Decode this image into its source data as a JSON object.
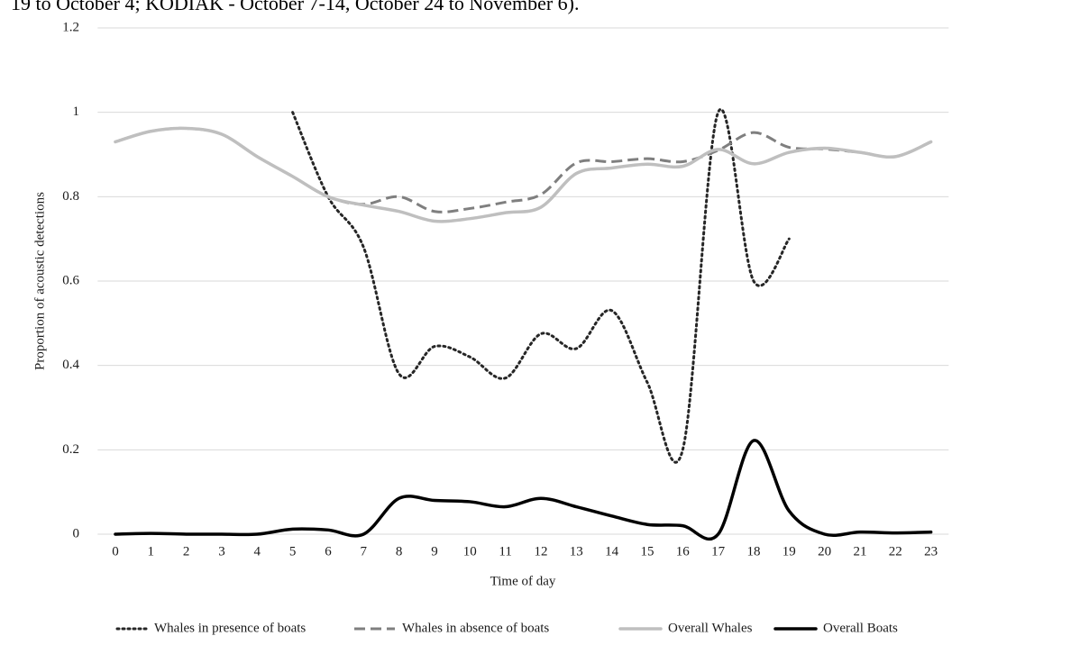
{
  "caption_fragment": "19 to October 4; KODIAK - October 7-14, October 24 to November 6).",
  "chart_data": {
    "type": "line",
    "y_label": "Proportion of acoustic detections",
    "x_label": "Time of day",
    "x": [
      0,
      1,
      2,
      3,
      4,
      5,
      6,
      7,
      8,
      9,
      10,
      11,
      12,
      13,
      14,
      15,
      16,
      17,
      18,
      19,
      20,
      21,
      22,
      23
    ],
    "xlim": [
      -0.5,
      23.5
    ],
    "xticks": [
      0,
      1,
      2,
      3,
      4,
      5,
      6,
      7,
      8,
      9,
      10,
      11,
      12,
      13,
      14,
      15,
      16,
      17,
      18,
      19,
      20,
      21,
      22,
      23
    ],
    "ylim": [
      0,
      1.2
    ],
    "yticks": [
      0,
      0.2,
      0.4,
      0.6,
      0.8,
      1,
      1.2
    ],
    "grid": true,
    "legend": "bottom",
    "series": [
      {
        "name": "Whales in presence of boats",
        "color": "#262626",
        "style": "dotted",
        "values": [
          null,
          null,
          null,
          null,
          null,
          1.0,
          0.8,
          0.68,
          0.38,
          0.445,
          0.42,
          0.37,
          0.475,
          0.44,
          0.53,
          0.36,
          0.2,
          1.0,
          0.6,
          0.7,
          null,
          null,
          null,
          null
        ]
      },
      {
        "name": "Whales in absence of boats",
        "color": "#7f7f7f",
        "style": "dashed",
        "values": [
          0.93,
          0.955,
          0.962,
          0.948,
          0.895,
          0.848,
          0.8,
          0.782,
          0.8,
          0.765,
          0.772,
          0.787,
          0.805,
          0.88,
          0.883,
          0.89,
          0.883,
          0.91,
          0.952,
          0.917,
          0.913,
          0.905,
          0.895,
          0.93
        ]
      },
      {
        "name": "Overall Whales",
        "color": "#bfbfbf",
        "style": "solid",
        "values": [
          0.93,
          0.955,
          0.962,
          0.948,
          0.895,
          0.848,
          0.8,
          0.78,
          0.765,
          0.742,
          0.748,
          0.762,
          0.775,
          0.855,
          0.868,
          0.877,
          0.872,
          0.912,
          0.878,
          0.905,
          0.915,
          0.905,
          0.895,
          0.93
        ]
      },
      {
        "name": "Overall Boats",
        "color": "#000000",
        "style": "solid",
        "values": [
          0,
          0.002,
          0,
          0,
          0,
          0.012,
          0.01,
          0,
          0.085,
          0.08,
          0.077,
          0.065,
          0.085,
          0.065,
          0.043,
          0.023,
          0.02,
          0,
          0.222,
          0.055,
          0,
          0.005,
          0.003,
          0.005
        ]
      }
    ]
  }
}
